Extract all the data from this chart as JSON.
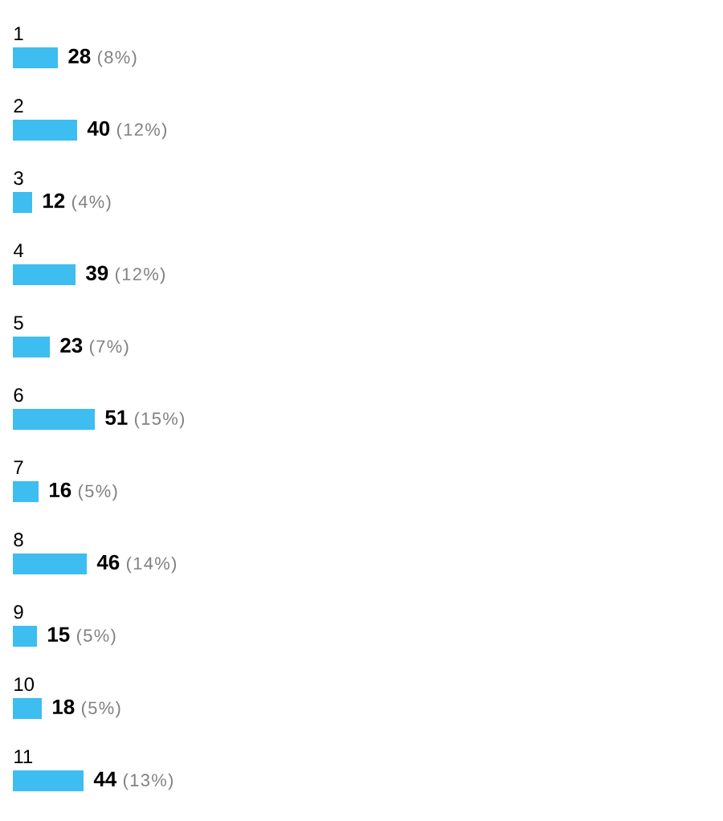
{
  "chart_data": {
    "type": "bar",
    "orientation": "horizontal",
    "categories": [
      "1",
      "2",
      "3",
      "4",
      "5",
      "6",
      "7",
      "8",
      "9",
      "10",
      "11"
    ],
    "values": [
      28,
      40,
      12,
      39,
      23,
      51,
      16,
      46,
      15,
      18,
      44
    ],
    "value_labels": [
      "**28** (8%)",
      "**40** (12%)",
      "**12** (4%)",
      "**39** (12%)",
      "**23** (7%)",
      "**51** (15%)",
      "**16** (5%)",
      "**46** (14%)",
      "**15** (5%)",
      "**18** (5%)",
      "**44** (13%)"
    ],
    "color": "#3dbdf0"
  }
}
